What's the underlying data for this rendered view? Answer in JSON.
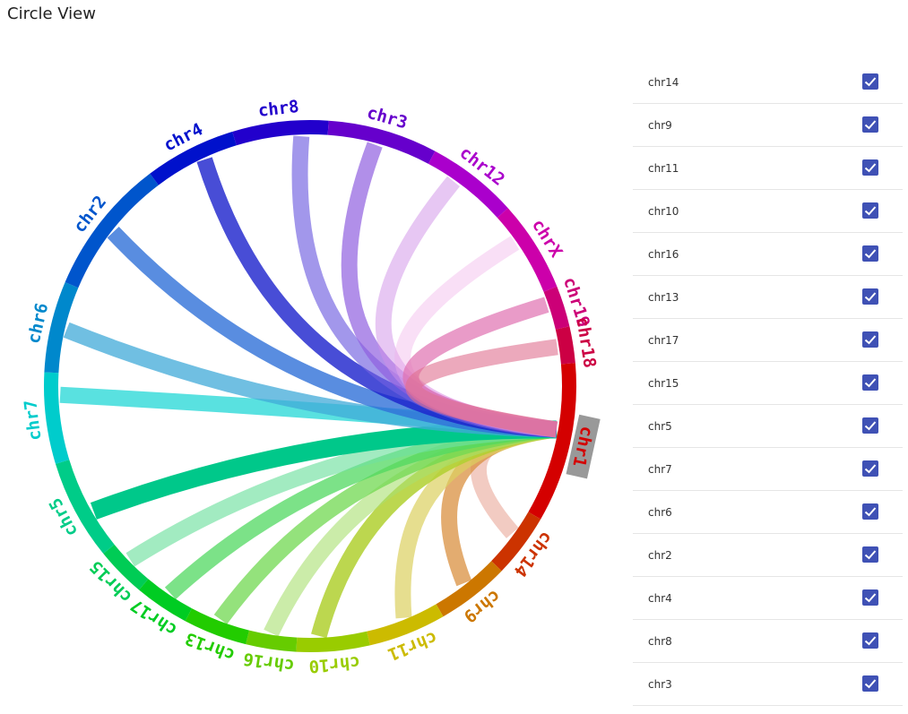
{
  "title": "Circle View",
  "diagram": {
    "type": "circos-chord",
    "center_chromosome": "chr1",
    "segments": [
      {
        "name": "chr1",
        "color": "#d40000"
      },
      {
        "name": "chr14",
        "color": "#cc3300"
      },
      {
        "name": "chr9",
        "color": "#cc7700"
      },
      {
        "name": "chr11",
        "color": "#ccbb00"
      },
      {
        "name": "chr10",
        "color": "#99cc00"
      },
      {
        "name": "chr16",
        "color": "#66cc00"
      },
      {
        "name": "chr13",
        "color": "#22cc00"
      },
      {
        "name": "chr17",
        "color": "#00cc22"
      },
      {
        "name": "chr15",
        "color": "#00cc55"
      },
      {
        "name": "chr5",
        "color": "#00cc88"
      },
      {
        "name": "chr7",
        "color": "#00cccc"
      },
      {
        "name": "chr6",
        "color": "#0088cc"
      },
      {
        "name": "chr2",
        "color": "#0055cc"
      },
      {
        "name": "chr4",
        "color": "#0011cc"
      },
      {
        "name": "chr8",
        "color": "#2200cc"
      },
      {
        "name": "chr3",
        "color": "#6600cc"
      },
      {
        "name": "chr12",
        "color": "#aa00cc"
      },
      {
        "name": "chrX",
        "color": "#cc00aa"
      },
      {
        "name": "chr19",
        "color": "#cc0077"
      },
      {
        "name": "chr18",
        "color": "#cc0044"
      }
    ],
    "links": [
      {
        "target": "chr14",
        "color": "#e8a090",
        "opacity": 0.55
      },
      {
        "target": "chr9",
        "color": "#d99040",
        "opacity": 0.75
      },
      {
        "target": "chr11",
        "color": "#dcd060",
        "opacity": 0.7
      },
      {
        "target": "chr10",
        "color": "#b0d030",
        "opacity": 0.85
      },
      {
        "target": "chr16",
        "color": "#a8e070",
        "opacity": 0.6
      },
      {
        "target": "chr13",
        "color": "#70d850",
        "opacity": 0.75
      },
      {
        "target": "chr17",
        "color": "#50d860",
        "opacity": 0.75
      },
      {
        "target": "chr15",
        "color": "#70e0a0",
        "opacity": 0.65
      },
      {
        "target": "chr5",
        "color": "#00c88a",
        "opacity": 1
      },
      {
        "target": "chr7",
        "color": "#30dad8",
        "opacity": 0.8
      },
      {
        "target": "chr6",
        "color": "#40aad8",
        "opacity": 0.75
      },
      {
        "target": "chr2",
        "color": "#3070d8",
        "opacity": 0.8
      },
      {
        "target": "chr4",
        "color": "#1a20cc",
        "opacity": 0.8
      },
      {
        "target": "chr8",
        "color": "#7060e0",
        "opacity": 0.65
      },
      {
        "target": "chr3",
        "color": "#9060e0",
        "opacity": 0.7
      },
      {
        "target": "chr12",
        "color": "#d090e8",
        "opacity": 0.5
      },
      {
        "target": "chrX",
        "color": "#f0b0e8",
        "opacity": 0.4
      },
      {
        "target": "chr19",
        "color": "#e070b0",
        "opacity": 0.7
      },
      {
        "target": "chr18",
        "color": "#e07090",
        "opacity": 0.6
      }
    ]
  },
  "chromosome_list": [
    {
      "label": "chr14",
      "checked": true
    },
    {
      "label": "chr9",
      "checked": true
    },
    {
      "label": "chr11",
      "checked": true
    },
    {
      "label": "chr10",
      "checked": true
    },
    {
      "label": "chr16",
      "checked": true
    },
    {
      "label": "chr13",
      "checked": true
    },
    {
      "label": "chr17",
      "checked": true
    },
    {
      "label": "chr15",
      "checked": true
    },
    {
      "label": "chr5",
      "checked": true
    },
    {
      "label": "chr7",
      "checked": true
    },
    {
      "label": "chr6",
      "checked": true
    },
    {
      "label": "chr2",
      "checked": true
    },
    {
      "label": "chr4",
      "checked": true
    },
    {
      "label": "chr8",
      "checked": true
    },
    {
      "label": "chr3",
      "checked": true
    }
  ],
  "colors": {
    "checkbox": "#3f51b5",
    "highlight": "#999999"
  }
}
